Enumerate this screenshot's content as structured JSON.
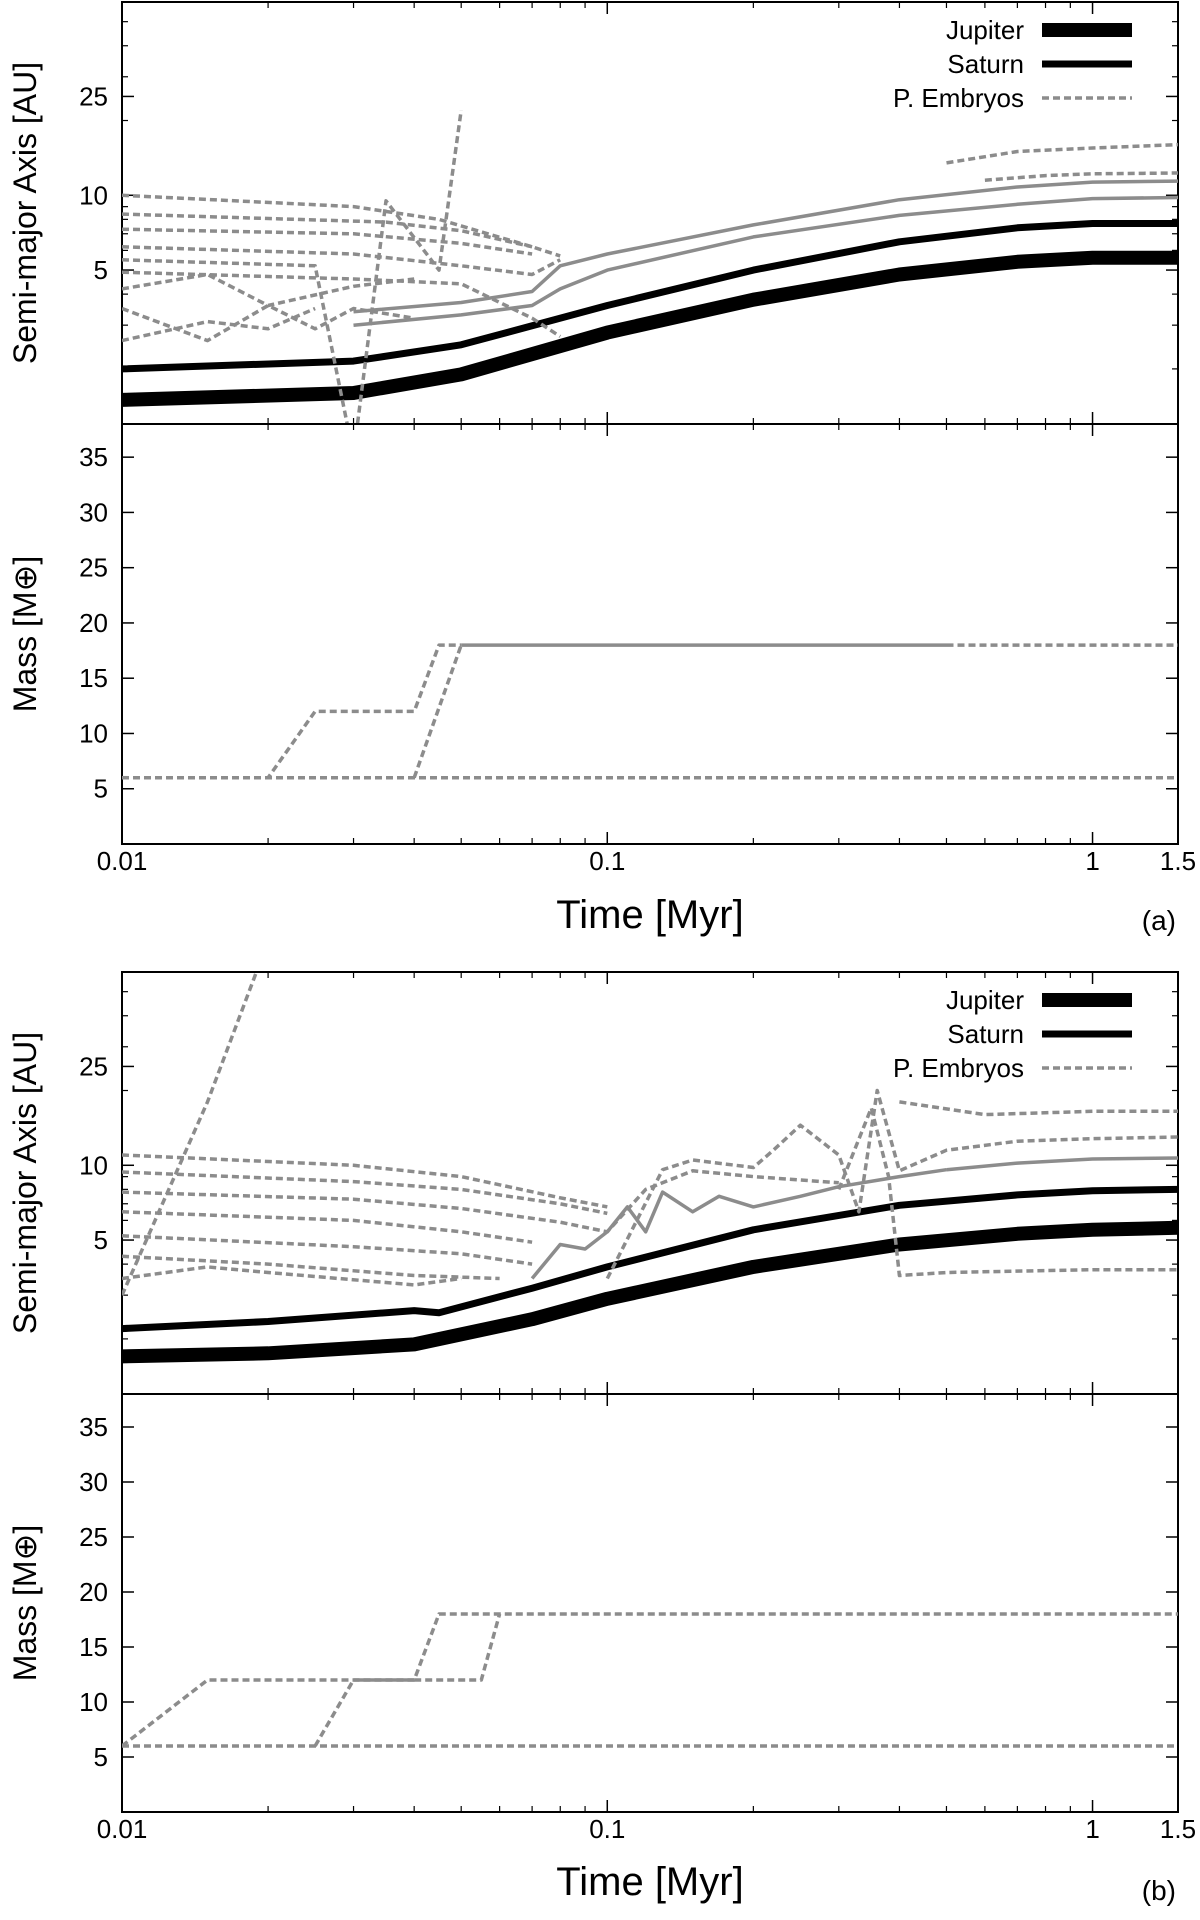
{
  "chart_data": [
    {
      "panel": "(a)",
      "type": "line",
      "xlabel": "Time [Myr]",
      "xscale": "log",
      "xlim": [
        0.01,
        1.5
      ],
      "xticks": [
        "0.01",
        "0.1",
        "1",
        "1.5"
      ],
      "subplots": [
        {
          "ylabel": "Semi-major Axis [AU]",
          "yscale": "log",
          "ylim": [
            1.2,
            60
          ],
          "yticks": [
            "5",
            "10",
            "25"
          ],
          "legend": {
            "position": "top-right",
            "entries": [
              "Jupiter",
              "Saturn",
              "P. Embryos"
            ]
          },
          "series": [
            {
              "name": "Jupiter",
              "style": "thick-black",
              "x": [
                0.01,
                0.03,
                0.05,
                0.1,
                0.2,
                0.4,
                0.7,
                1.0,
                1.5
              ],
              "y": [
                1.5,
                1.6,
                1.9,
                2.8,
                3.8,
                4.8,
                5.4,
                5.6,
                5.6
              ]
            },
            {
              "name": "Saturn",
              "style": "black",
              "x": [
                0.01,
                0.03,
                0.05,
                0.1,
                0.2,
                0.4,
                0.7,
                1.0,
                1.5
              ],
              "y": [
                2.0,
                2.15,
                2.5,
                3.6,
                5.0,
                6.5,
                7.4,
                7.7,
                7.7
              ]
            },
            {
              "name": "P. Embryos",
              "style": "gray-dashed",
              "x": [
                0.01,
                0.03,
                0.045,
                0.07,
                0.08
              ],
              "y": [
                10,
                9.0,
                8.0,
                6.2,
                5.7
              ]
            },
            {
              "style": "gray-dashed",
              "x": [
                0.01,
                0.035,
                0.05,
                0.07
              ],
              "y": [
                8.4,
                7.8,
                7.2,
                6.2
              ]
            },
            {
              "style": "gray-dashed",
              "x": [
                0.01,
                0.03,
                0.05,
                0.07
              ],
              "y": [
                7.3,
                7.0,
                6.4,
                5.8
              ]
            },
            {
              "style": "gray-dashed",
              "x": [
                0.01,
                0.025,
                0.03,
                0.035,
                0.045,
                0.05
              ],
              "y": [
                5.5,
                5.2,
                0.9,
                9.5,
                5.0,
                22
              ]
            },
            {
              "style": "gray-dashed",
              "x": [
                0.01,
                0.03,
                0.05,
                0.07,
                0.08
              ],
              "y": [
                6.2,
                5.8,
                5.2,
                4.8,
                5.5
              ]
            },
            {
              "style": "gray-dashed",
              "x": [
                0.01,
                0.03,
                0.05,
                0.07,
                0.08
              ],
              "y": [
                4.9,
                4.6,
                4.4,
                3.2,
                2.7
              ]
            },
            {
              "style": "gray-dashed",
              "x": [
                0.01,
                0.015,
                0.02,
                0.03,
                0.04
              ],
              "y": [
                4.2,
                4.8,
                3.6,
                4.3,
                4.6
              ]
            },
            {
              "style": "gray-dashed",
              "x": [
                0.01,
                0.015,
                0.02,
                0.025,
                0.03,
                0.04
              ],
              "y": [
                3.5,
                2.6,
                3.6,
                2.9,
                3.5,
                3.2
              ]
            },
            {
              "style": "gray-dashed",
              "x": [
                0.01,
                0.015,
                0.02,
                0.025
              ],
              "y": [
                2.6,
                3.1,
                2.9,
                3.5
              ]
            },
            {
              "style": "gray-solid",
              "x": [
                0.03,
                0.05,
                0.07,
                0.08,
                0.1,
                0.2,
                0.4,
                0.7,
                1.0,
                1.5
              ],
              "y": [
                3.4,
                3.7,
                4.1,
                5.2,
                5.8,
                7.6,
                9.6,
                10.8,
                11.3,
                11.4
              ]
            },
            {
              "style": "gray-solid",
              "x": [
                0.03,
                0.05,
                0.07,
                0.08,
                0.1,
                0.2,
                0.4,
                0.7,
                1.0,
                1.5
              ],
              "y": [
                3.0,
                3.3,
                3.6,
                4.2,
                5.0,
                6.8,
                8.3,
                9.2,
                9.7,
                9.8
              ]
            },
            {
              "style": "gray-dashed",
              "x": [
                0.5,
                0.7,
                1.0,
                1.5
              ],
              "y": [
                13.5,
                15,
                15.5,
                16
              ]
            },
            {
              "style": "gray-dashed",
              "x": [
                0.6,
                0.8,
                1.0,
                1.5
              ],
              "y": [
                11.5,
                12,
                12.2,
                12.3
              ]
            }
          ]
        },
        {
          "ylabel": "Mass [M⊕]",
          "yscale": "linear",
          "ylim": [
            0,
            38
          ],
          "yticks": [
            "5",
            "10",
            "15",
            "20",
            "25",
            "30",
            "35"
          ],
          "series": [
            {
              "style": "gray-dashed",
              "x": [
                0.01,
                0.02,
                0.025,
                0.04,
                0.045,
                0.05
              ],
              "y": [
                6,
                6,
                12,
                12,
                18,
                18
              ]
            },
            {
              "style": "gray-dashed",
              "x": [
                0.04,
                0.05
              ],
              "y": [
                6,
                18
              ]
            },
            {
              "style": "gray-solid",
              "x": [
                0.05,
                0.5
              ],
              "y": [
                18,
                18
              ]
            },
            {
              "style": "gray-dashed",
              "x": [
                0.5,
                1.5
              ],
              "y": [
                18,
                18
              ]
            },
            {
              "style": "gray-dashed",
              "x": [
                0.01,
                1.5
              ],
              "y": [
                6,
                6
              ]
            }
          ]
        }
      ]
    },
    {
      "panel": "(b)",
      "type": "line",
      "xlabel": "Time [Myr]",
      "xscale": "log",
      "xlim": [
        0.01,
        1.5
      ],
      "xticks": [
        "0.01",
        "0.1",
        "1",
        "1.5"
      ],
      "subplots": [
        {
          "ylabel": "Semi-major Axis [AU]",
          "yscale": "log",
          "ylim": [
            1.2,
            60
          ],
          "yticks": [
            "5",
            "10",
            "25"
          ],
          "legend": {
            "position": "top-right",
            "entries": [
              "Jupiter",
              "Saturn",
              "P. Embryos"
            ]
          },
          "series": [
            {
              "name": "Jupiter",
              "style": "thick-black",
              "x": [
                0.01,
                0.02,
                0.04,
                0.07,
                0.1,
                0.2,
                0.4,
                0.7,
                1.0,
                1.5
              ],
              "y": [
                1.7,
                1.75,
                1.9,
                2.4,
                2.9,
                3.9,
                4.8,
                5.3,
                5.5,
                5.6
              ]
            },
            {
              "name": "Saturn",
              "style": "black",
              "x": [
                0.01,
                0.02,
                0.04,
                0.045,
                0.07,
                0.1,
                0.2,
                0.4,
                0.7,
                1.0,
                1.5
              ],
              "y": [
                2.2,
                2.35,
                2.6,
                2.55,
                3.2,
                3.9,
                5.5,
                6.9,
                7.6,
                7.9,
                8.0
              ]
            },
            {
              "name": "P. Embryos",
              "style": "gray-dashed",
              "x": [
                0.01,
                0.015,
                0.02
              ],
              "y": [
                3.0,
                18,
                80
              ]
            },
            {
              "style": "gray-dashed",
              "x": [
                0.01,
                0.03,
                0.05,
                0.08,
                0.1
              ],
              "y": [
                11,
                10,
                9.0,
                7.4,
                6.8
              ]
            },
            {
              "style": "gray-dashed",
              "x": [
                0.01,
                0.03,
                0.05,
                0.08,
                0.1
              ],
              "y": [
                9.4,
                8.6,
                8.0,
                7.0,
                6.4
              ]
            },
            {
              "style": "gray-dashed",
              "x": [
                0.01,
                0.03,
                0.05,
                0.08,
                0.1,
                0.12,
                0.15,
                0.2,
                0.3
              ],
              "y": [
                7.8,
                7.3,
                6.7,
                5.9,
                5.4,
                8.0,
                9.5,
                9.0,
                8.5
              ]
            },
            {
              "style": "gray-dashed",
              "x": [
                0.01,
                0.03,
                0.05,
                0.07
              ],
              "y": [
                6.5,
                6.0,
                5.4,
                4.9
              ]
            },
            {
              "style": "gray-dashed",
              "x": [
                0.01,
                0.03,
                0.05,
                0.07
              ],
              "y": [
                5.2,
                4.7,
                4.4,
                4.0
              ]
            },
            {
              "style": "gray-dashed",
              "x": [
                0.01,
                0.02,
                0.04,
                0.06
              ],
              "y": [
                4.3,
                4.0,
                3.6,
                3.5
              ]
            },
            {
              "style": "gray-dashed",
              "x": [
                0.01,
                0.015,
                0.02,
                0.04,
                0.05
              ],
              "y": [
                3.5,
                3.9,
                3.7,
                3.3,
                3.5
              ]
            },
            {
              "style": "gray-solid",
              "x": [
                0.07,
                0.08,
                0.09,
                0.1,
                0.11,
                0.12,
                0.13,
                0.15,
                0.17,
                0.2,
                0.25,
                0.3,
                0.4,
                0.5
              ],
              "y": [
                3.5,
                4.8,
                4.6,
                5.4,
                6.8,
                5.4,
                7.8,
                6.5,
                7.5,
                6.8,
                7.5,
                8.2,
                9.0,
                9.6
              ]
            },
            {
              "style": "gray-solid",
              "x": [
                0.5,
                0.7,
                1.0,
                1.5
              ],
              "y": [
                9.6,
                10.2,
                10.6,
                10.7
              ]
            },
            {
              "style": "gray-dashed",
              "x": [
                0.1,
                0.13,
                0.15,
                0.2,
                0.22,
                0.25,
                0.3,
                0.33,
                0.36,
                0.4,
                0.5,
                0.7,
                1.0,
                1.5
              ],
              "y": [
                3.5,
                9.6,
                10.5,
                9.8,
                11.5,
                14.5,
                11,
                6.5,
                20,
                9.5,
                11.5,
                12.5,
                12.8,
                13.0
              ]
            },
            {
              "style": "gray-dashed",
              "x": [
                0.3,
                0.35,
                0.38,
                0.4,
                0.5,
                1.0,
                1.5
              ],
              "y": [
                8.0,
                17,
                9.0,
                3.6,
                3.7,
                3.8,
                3.8
              ]
            },
            {
              "style": "gray-dashed",
              "x": [
                0.4,
                0.6,
                1.0,
                1.5
              ],
              "y": [
                18,
                16,
                16.5,
                16.5
              ]
            }
          ]
        },
        {
          "ylabel": "Mass [M⊕]",
          "yscale": "linear",
          "ylim": [
            0,
            38
          ],
          "yticks": [
            "5",
            "10",
            "15",
            "20",
            "25",
            "30",
            "35"
          ],
          "series": [
            {
              "style": "gray-dashed",
              "x": [
                0.01,
                0.015,
                0.03,
                0.04,
                0.045,
                1.5
              ],
              "y": [
                6,
                12,
                12,
                12,
                18,
                18
              ]
            },
            {
              "style": "gray-dashed",
              "x": [
                0.025,
                0.03
              ],
              "y": [
                6,
                12
              ]
            },
            {
              "style": "gray-solid",
              "x": [
                0.03,
                0.04
              ],
              "y": [
                12,
                12
              ]
            },
            {
              "style": "gray-dashed",
              "x": [
                0.04,
                0.055,
                0.06
              ],
              "y": [
                12,
                12,
                18
              ]
            },
            {
              "style": "gray-dashed",
              "x": [
                0.01,
                1.5
              ],
              "y": [
                6,
                6
              ]
            }
          ]
        }
      ]
    }
  ]
}
